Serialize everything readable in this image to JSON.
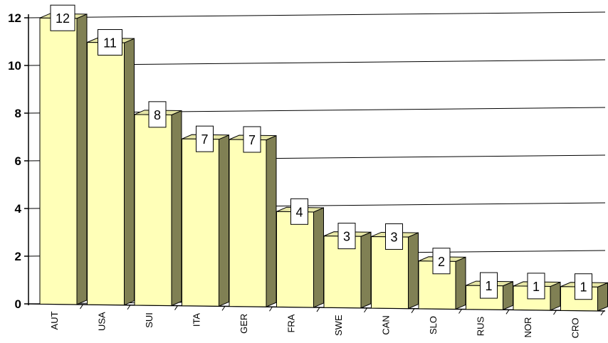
{
  "chart_data": {
    "type": "bar",
    "title": "",
    "xlabel": "",
    "ylabel": "",
    "categories": [
      "AUT",
      "USA",
      "SUI",
      "ITA",
      "GER",
      "FRA",
      "SWE",
      "CAN",
      "SLO",
      "RUS",
      "NOR",
      "CRO"
    ],
    "values": [
      12,
      11,
      8,
      7,
      7,
      4,
      3,
      3,
      2,
      1,
      1,
      1
    ],
    "ylim": [
      0,
      12
    ],
    "yticks": [
      "0",
      "2",
      "4",
      "6",
      "8",
      "10",
      "12"
    ],
    "grid": true,
    "legend": "none",
    "colors": {
      "bar_front": "#FFFFB8",
      "bar_side": "#808054",
      "bar_top": "#E6E6A6",
      "outline": "#000000",
      "gridline": "#000000"
    }
  }
}
